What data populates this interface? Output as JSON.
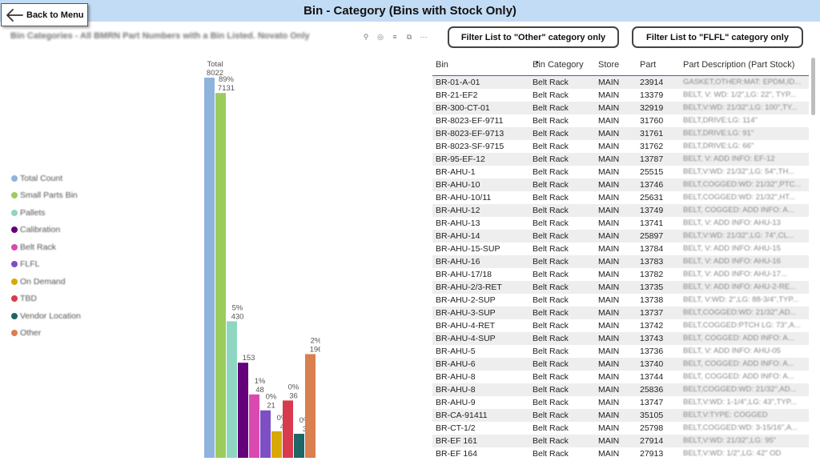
{
  "header": {
    "title": "Bin - Category (Bins with Stock Only)",
    "back_label": "Back to Menu"
  },
  "filters": {
    "other_label": "Filter List to \"Other\" category only",
    "flfl_label": "Filter List to \"FLFL\" category only"
  },
  "visual": {
    "title": "Bin Categories - All BMRN Part Numbers with a Bin Listed. Novato Only",
    "header_icons": [
      "pin-icon",
      "bell-icon",
      "filter-icon",
      "focus-icon",
      "more-icon"
    ]
  },
  "chart_data": {
    "type": "bar",
    "title": "Bin Categories - All BMRN Part Numbers with a Bin Listed. Novato Only",
    "categories": [
      "Total Count",
      "Small Parts Bin",
      "Pallets",
      "Calibration",
      "Belt Rack",
      "FLFL",
      "On Demand",
      "TBD",
      "Vendor Location",
      "Other"
    ],
    "values": [
      8022,
      7131,
      430,
      153,
      48,
      21,
      4,
      36,
      3,
      196
    ],
    "percent_labels": [
      "Total",
      "89%",
      "5%",
      "",
      "1%",
      "0%",
      "0%",
      "0%",
      "0%",
      "2%"
    ],
    "value_labels": [
      "8022",
      "7131",
      "430",
      "153",
      "48",
      "21",
      "4",
      "36",
      "3",
      "196"
    ],
    "colors": [
      "#8fb4dc",
      "#9ccc5e",
      "#8fd6c2",
      "#63007a",
      "#d94ab0",
      "#7e4ec4",
      "#d8a906",
      "#d83a4e",
      "#1f6666",
      "#d97f50"
    ],
    "legend_placement": "left",
    "grid": false,
    "xlabel": "",
    "ylabel": ""
  },
  "table": {
    "columns": [
      "Bin",
      "Bin Category",
      "Store",
      "Part",
      "Part Description (Part Stock)"
    ],
    "sort_column": "Bin Category",
    "rows": [
      [
        "BR-01-A-01",
        "Belt Rack",
        "MAIN",
        "23914",
        "GASKET,OTHER:MAT: EPDM,ID..."
      ],
      [
        "BR-21-EF2",
        "Belt Rack",
        "MAIN",
        "13379",
        "BELT, V: WD: 1/2\",LG: 22\", TYP..."
      ],
      [
        "BR-300-CT-01",
        "Belt Rack",
        "MAIN",
        "32919",
        "BELT,V:WD: 21/32\",LG: 100\",TY..."
      ],
      [
        "BR-8023-EF-9711",
        "Belt Rack",
        "MAIN",
        "31760",
        "BELT,DRIVE:LG: 114\""
      ],
      [
        "BR-8023-EF-9713",
        "Belt Rack",
        "MAIN",
        "31761",
        "BELT,DRIVE:LG: 91\""
      ],
      [
        "BR-8023-SF-9715",
        "Belt Rack",
        "MAIN",
        "31762",
        "BELT,DRIVE:LG: 66\""
      ],
      [
        "BR-95-EF-12",
        "Belt Rack",
        "MAIN",
        "13787",
        "BELT, V: ADD INFO: EF-12"
      ],
      [
        "BR-AHU-1",
        "Belt Rack",
        "MAIN",
        "25515",
        "BELT,V:WD: 21/32\",LG: 54\",TH..."
      ],
      [
        "BR-AHU-10",
        "Belt Rack",
        "MAIN",
        "13746",
        "BELT,COGGED:WD: 21/32\",PTC..."
      ],
      [
        "BR-AHU-10/11",
        "Belt Rack",
        "MAIN",
        "25631",
        "BELT,COGGED:WD: 21/32\",HT..."
      ],
      [
        "BR-AHU-12",
        "Belt Rack",
        "MAIN",
        "13749",
        "BELT, COGGED: ADD INFO: A..."
      ],
      [
        "BR-AHU-13",
        "Belt Rack",
        "MAIN",
        "13741",
        "BELT, V: ADD INFO: AHU-13"
      ],
      [
        "BR-AHU-14",
        "Belt Rack",
        "MAIN",
        "25897",
        "BELT,V:WD: 21/32\",LG: 74\",CL..."
      ],
      [
        "BR-AHU-15-SUP",
        "Belt Rack",
        "MAIN",
        "13784",
        "BELT, V: ADD INFO: AHU-15"
      ],
      [
        "BR-AHU-16",
        "Belt Rack",
        "MAIN",
        "13783",
        "BELT, V: ADD INFO: AHU-16"
      ],
      [
        "BR-AHU-17/18",
        "Belt Rack",
        "MAIN",
        "13782",
        "BELT, V: ADD INFO: AHU-17..."
      ],
      [
        "BR-AHU-2/3-RET",
        "Belt Rack",
        "MAIN",
        "13735",
        "BELT, V: ADD INFO: AHU-2-RE..."
      ],
      [
        "BR-AHU-2-SUP",
        "Belt Rack",
        "MAIN",
        "13738",
        "BELT, V:WD: 2\",LG: 88-3/4\",TYP..."
      ],
      [
        "BR-AHU-3-SUP",
        "Belt Rack",
        "MAIN",
        "13737",
        "BELT,COGGED:WD: 21/32\",AD..."
      ],
      [
        "BR-AHU-4-RET",
        "Belt Rack",
        "MAIN",
        "13742",
        "BELT,COGGED:PTCH LG: 73\",A..."
      ],
      [
        "BR-AHU-4-SUP",
        "Belt Rack",
        "MAIN",
        "13743",
        "BELT, COGGED: ADD INFO: A..."
      ],
      [
        "BR-AHU-5",
        "Belt Rack",
        "MAIN",
        "13736",
        "BELT, V: ADD INFO: AHU-05"
      ],
      [
        "BR-AHU-6",
        "Belt Rack",
        "MAIN",
        "13740",
        "BELT, COGGED: ADD INFO: A..."
      ],
      [
        "BR-AHU-8",
        "Belt Rack",
        "MAIN",
        "13744",
        "BELT, COGGED: ADD INFO: A..."
      ],
      [
        "BR-AHU-8",
        "Belt Rack",
        "MAIN",
        "25836",
        "BELT,COGGED:WD: 21/32\",AD..."
      ],
      [
        "BR-AHU-9",
        "Belt Rack",
        "MAIN",
        "13747",
        "BELT,V:WD: 1-1/4\",LG: 43\",TYP..."
      ],
      [
        "BR-CA-91411",
        "Belt Rack",
        "MAIN",
        "35105",
        "BELT,V:TYPE: COGGED"
      ],
      [
        "BR-CT-1/2",
        "Belt Rack",
        "MAIN",
        "25798",
        "BELT,COGGED:WD: 3-15/16\",A..."
      ],
      [
        "BR-EF 161",
        "Belt Rack",
        "MAIN",
        "27914",
        "BELT,V:WD: 21/32\",LG: 95\""
      ],
      [
        "BR-EF 164",
        "Belt Rack",
        "MAIN",
        "27913",
        "BELT,V:WD: 1/2\",LG: 42\" OD"
      ]
    ]
  }
}
